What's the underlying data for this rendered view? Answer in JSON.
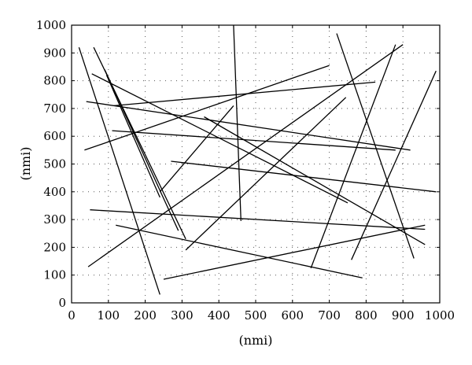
{
  "chart_data": {
    "type": "line",
    "title": "",
    "xlabel": "(nmi)",
    "ylabel": "(nmi)",
    "xlim": [
      0,
      1000
    ],
    "ylim": [
      0,
      1000
    ],
    "xticks": [
      0,
      100,
      200,
      300,
      400,
      500,
      600,
      700,
      800,
      900,
      1000
    ],
    "yticks": [
      0,
      100,
      200,
      300,
      400,
      500,
      600,
      700,
      800,
      900,
      1000
    ],
    "grid": true,
    "segments": [
      {
        "x": [
          20,
          240
        ],
        "y": [
          920,
          30
        ]
      },
      {
        "x": [
          60,
          310
        ],
        "y": [
          920,
          230
        ]
      },
      {
        "x": [
          90,
          290
        ],
        "y": [
          840,
          260
        ]
      },
      {
        "x": [
          95,
          240
        ],
        "y": [
          820,
          380
        ]
      },
      {
        "x": [
          55,
          750
        ],
        "y": [
          825,
          360
        ]
      },
      {
        "x": [
          40,
          920
        ],
        "y": [
          725,
          550
        ]
      },
      {
        "x": [
          110,
          880
        ],
        "y": [
          620,
          550
        ]
      },
      {
        "x": [
          115,
          825
        ],
        "y": [
          710,
          795
        ]
      },
      {
        "x": [
          35,
          700
        ],
        "y": [
          550,
          855
        ]
      },
      {
        "x": [
          45,
          900
        ],
        "y": [
          130,
          930
        ]
      },
      {
        "x": [
          240,
          440
        ],
        "y": [
          400,
          710
        ]
      },
      {
        "x": [
          440,
          460
        ],
        "y": [
          1000,
          295
        ]
      },
      {
        "x": [
          360,
          960
        ],
        "y": [
          670,
          210
        ]
      },
      {
        "x": [
          270,
          990
        ],
        "y": [
          510,
          400
        ]
      },
      {
        "x": [
          50,
          960
        ],
        "y": [
          335,
          265
        ]
      },
      {
        "x": [
          120,
          790
        ],
        "y": [
          280,
          90
        ]
      },
      {
        "x": [
          250,
          960
        ],
        "y": [
          85,
          280
        ]
      },
      {
        "x": [
          310,
          745
        ],
        "y": [
          190,
          740
        ]
      },
      {
        "x": [
          720,
          930
        ],
        "y": [
          970,
          160
        ]
      },
      {
        "x": [
          650,
          880
        ],
        "y": [
          125,
          930
        ]
      },
      {
        "x": [
          760,
          990
        ],
        "y": [
          155,
          835
        ]
      }
    ]
  }
}
